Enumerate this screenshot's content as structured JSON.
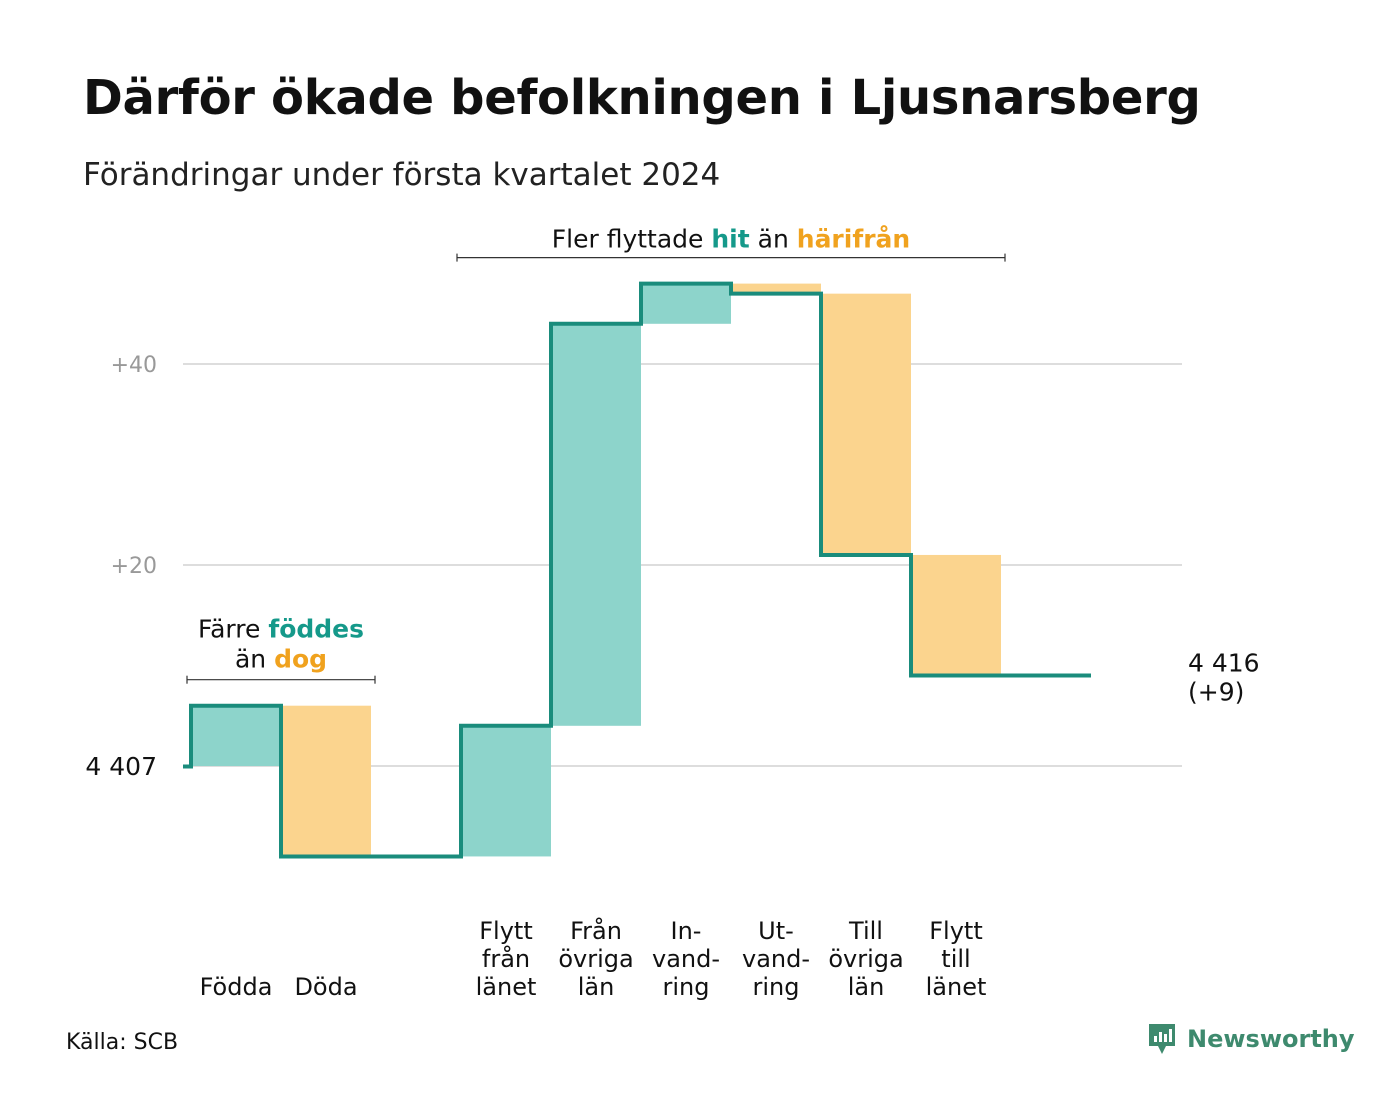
{
  "title": "Därför ökade befolkningen i Ljusnarsberg",
  "subtitle": "Förändringar under första kvartalet 2024",
  "source": "Källa: SCB",
  "brand": {
    "name": "Newsworthy",
    "icon": "newsworthy-logo-icon"
  },
  "colors": {
    "increase": "#8dd4cb",
    "decrease": "#fbd48e",
    "line": "#1a8c7c",
    "teal_text": "#15998a",
    "orange_text": "#f0a21e",
    "grid": "#dddddd",
    "tick": "#999999"
  },
  "chart_data": {
    "type": "waterfall",
    "start_value": 4407,
    "start_label": "4 407",
    "end_label": "4 416",
    "end_change_label": "(+9)",
    "y_ticks": [
      {
        "value": 40,
        "label": "+40"
      },
      {
        "value": 20,
        "label": "+20"
      }
    ],
    "steps": [
      {
        "label": [
          "Födda"
        ],
        "change": 6,
        "kind": "increase"
      },
      {
        "label": [
          "Döda"
        ],
        "change": -15,
        "kind": "decrease"
      },
      {
        "label": [],
        "change": 0,
        "kind": "gap"
      },
      {
        "label": [
          "Flytt",
          "från",
          "länet"
        ],
        "change": 13,
        "kind": "increase"
      },
      {
        "label": [
          "Från",
          "övriga",
          "län"
        ],
        "change": 40,
        "kind": "increase"
      },
      {
        "label": [
          "In-",
          "vand-",
          "ring"
        ],
        "change": 4,
        "kind": "increase"
      },
      {
        "label": [
          "Ut-",
          "vand-",
          "ring"
        ],
        "change": -1,
        "kind": "decrease"
      },
      {
        "label": [
          "Till",
          "övriga",
          "län"
        ],
        "change": -26,
        "kind": "decrease"
      },
      {
        "label": [
          "Flytt",
          "till",
          "länet"
        ],
        "change": -12,
        "kind": "decrease"
      },
      {
        "label": [],
        "change": 0,
        "kind": "gap"
      }
    ],
    "annotations": [
      {
        "parts": [
          {
            "text": "Färre ",
            "style": "plain"
          },
          {
            "text": "föddes",
            "style": "teal"
          }
        ],
        "parts2": [
          {
            "text": "än ",
            "style": "plain"
          },
          {
            "text": "dog",
            "style": "orange"
          }
        ],
        "from_step": 0,
        "to_step": 1
      },
      {
        "parts": [
          {
            "text": "Fler flyttade ",
            "style": "plain"
          },
          {
            "text": "hit",
            "style": "teal"
          },
          {
            "text": " än ",
            "style": "plain"
          },
          {
            "text": "härifrån",
            "style": "orange"
          }
        ],
        "parts2": [],
        "from_step": 3,
        "to_step": 8
      }
    ]
  }
}
